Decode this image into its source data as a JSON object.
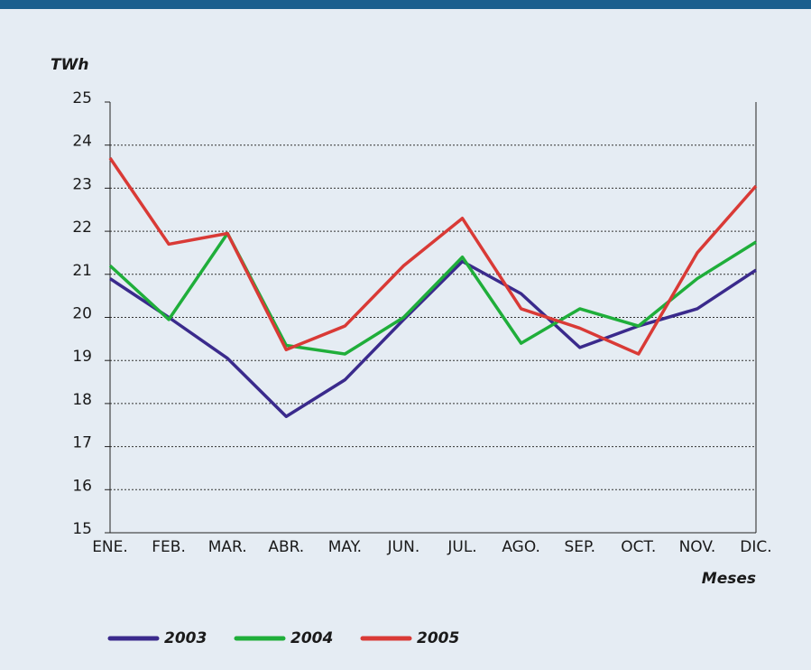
{
  "chart_data": {
    "type": "line",
    "y_label": "TWh",
    "x_label": "Meses",
    "categories": [
      "ENE.",
      "FEB.",
      "MAR.",
      "ABR.",
      "MAY.",
      "JUN.",
      "JUL.",
      "AGO.",
      "SEP.",
      "OCT.",
      "NOV.",
      "DIC."
    ],
    "series": [
      {
        "name": "2003",
        "color": "#3a2a8c",
        "values": [
          20.9,
          20.0,
          19.05,
          17.7,
          18.55,
          19.95,
          21.3,
          20.55,
          19.3,
          19.8,
          20.2,
          21.1
        ]
      },
      {
        "name": "2004",
        "color": "#1fae3a",
        "values": [
          21.2,
          19.95,
          21.95,
          19.35,
          19.15,
          20.0,
          21.4,
          19.4,
          20.2,
          19.8,
          20.9,
          21.75
        ]
      },
      {
        "name": "2005",
        "color": "#d93a36",
        "values": [
          23.7,
          21.7,
          21.95,
          19.25,
          19.8,
          21.2,
          22.3,
          20.2,
          19.75,
          19.15,
          21.5,
          23.05
        ]
      }
    ],
    "ylim": [
      15,
      25
    ],
    "yticks": [
      15,
      16,
      17,
      18,
      19,
      20,
      21,
      22,
      23,
      24,
      25
    ],
    "grid": true
  }
}
